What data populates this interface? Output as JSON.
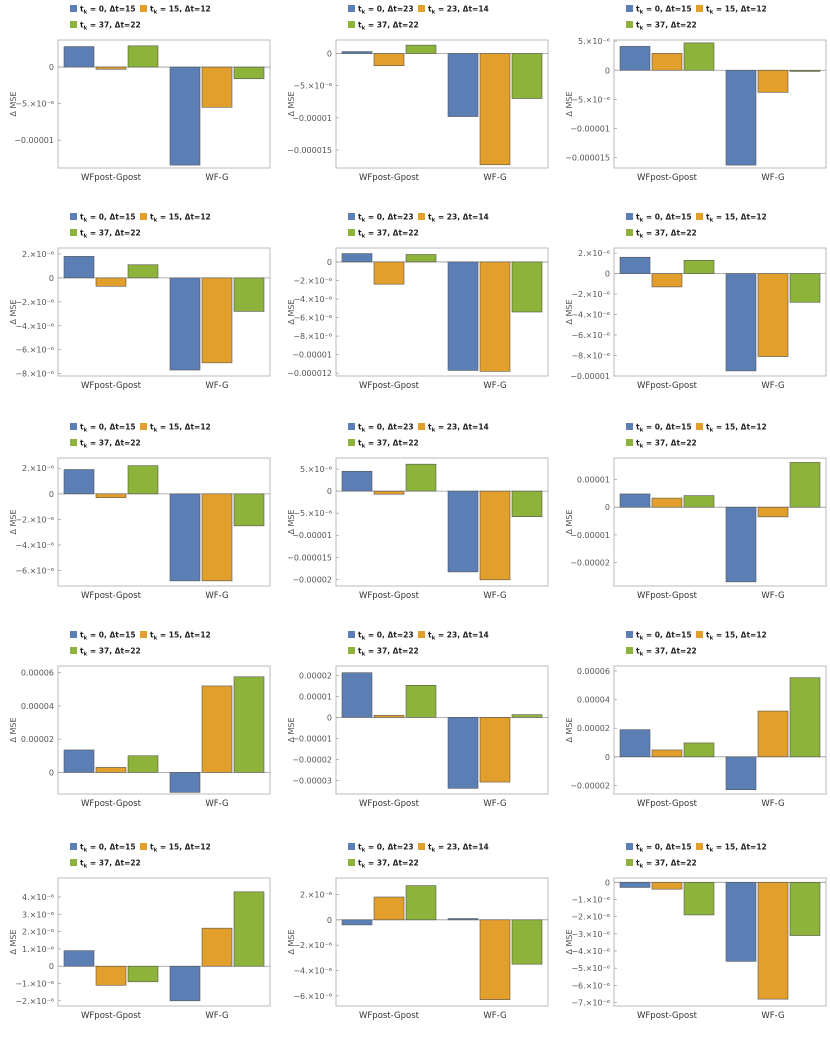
{
  "colors": {
    "blue": "#5b7fb5",
    "orange": "#e39f2b",
    "green": "#8db33a"
  },
  "ylabel": "Δ MSE",
  "categories": [
    "WFpost-Gpost",
    "WF-G"
  ],
  "legend_a": [
    "t_k = 0, Δt=15",
    "t_k = 15, Δt=12",
    "t_k = 37, Δt=22"
  ],
  "legend_b": [
    "t_k = 0, Δt=23",
    "t_k = 23, Δt=14",
    "t_k = 37, Δt=22"
  ],
  "chart_data": [
    {
      "type": "bar",
      "legend": "a",
      "ylim": [
        -1.38e-05,
        3.7e-06
      ],
      "ticks": [
        {
          "v": 0,
          "t": "0"
        },
        {
          "v": -5e-06,
          "t": "−5.×10⁻⁶"
        },
        {
          "v": -1e-05,
          "t": "−0.00001"
        }
      ],
      "series": [
        {
          "values": [
            2.8e-06,
            -1.34e-05
          ]
        },
        {
          "values": [
            -3e-07,
            -5.5e-06
          ]
        },
        {
          "values": [
            2.9e-06,
            -1.6e-06
          ]
        }
      ]
    },
    {
      "type": "bar",
      "legend": "b",
      "ylim": [
        -1.78e-05,
        2.1e-06
      ],
      "ticks": [
        {
          "v": 0,
          "t": "0"
        },
        {
          "v": -5e-06,
          "t": "−5.×10⁻⁶"
        },
        {
          "v": -1e-05,
          "t": "−0.00001"
        },
        {
          "v": -1.5e-05,
          "t": "−0.000015"
        }
      ],
      "series": [
        {
          "values": [
            3e-07,
            -9.8e-06
          ]
        },
        {
          "values": [
            -1.9e-06,
            -1.73e-05
          ]
        },
        {
          "values": [
            1.3e-06,
            -7e-06
          ]
        }
      ]
    },
    {
      "type": "bar",
      "legend": "a",
      "ylim": [
        -1.68e-05,
        5.2e-06
      ],
      "ticks": [
        {
          "v": 5e-06,
          "t": "5.×10⁻⁶"
        },
        {
          "v": 0,
          "t": "0"
        },
        {
          "v": -5e-06,
          "t": "−5.×10⁻⁶"
        },
        {
          "v": -1e-05,
          "t": "−0.00001"
        },
        {
          "v": -1.5e-05,
          "t": "−0.000015"
        }
      ],
      "series": [
        {
          "values": [
            4.1e-06,
            -1.63e-05
          ]
        },
        {
          "values": [
            2.9e-06,
            -3.8e-06
          ]
        },
        {
          "values": [
            4.7e-06,
            -2e-07
          ]
        }
      ]
    },
    {
      "type": "bar",
      "legend": "a",
      "ylim": [
        -8.2e-06,
        2.5e-06
      ],
      "ticks": [
        {
          "v": 2e-06,
          "t": "2.×10⁻⁶"
        },
        {
          "v": 0,
          "t": "0"
        },
        {
          "v": -2e-06,
          "t": "−2.×10⁻⁶"
        },
        {
          "v": -4e-06,
          "t": "−4.×10⁻⁶"
        },
        {
          "v": -6e-06,
          "t": "−6.×10⁻⁶"
        },
        {
          "v": -8e-06,
          "t": "−8.×10⁻⁶"
        }
      ],
      "series": [
        {
          "values": [
            1.8e-06,
            -7.7e-06
          ]
        },
        {
          "values": [
            -7e-07,
            -7.1e-06
          ]
        },
        {
          "values": [
            1.1e-06,
            -2.8e-06
          ]
        }
      ]
    },
    {
      "type": "bar",
      "legend": "b",
      "ylim": [
        -1.23e-05,
        1.5e-06
      ],
      "ticks": [
        {
          "v": 0,
          "t": "0"
        },
        {
          "v": -2e-06,
          "t": "−2.×10⁻⁶"
        },
        {
          "v": -4e-06,
          "t": "−4.×10⁻⁶"
        },
        {
          "v": -6e-06,
          "t": "−6.×10⁻⁶"
        },
        {
          "v": -8e-06,
          "t": "−8.×10⁻⁶"
        },
        {
          "v": -1e-05,
          "t": "−0.00001"
        },
        {
          "v": -1.2e-05,
          "t": "−0.000012"
        }
      ],
      "series": [
        {
          "values": [
            9e-07,
            -1.17e-05
          ]
        },
        {
          "values": [
            -2.4e-06,
            -1.18e-05
          ]
        },
        {
          "values": [
            8e-07,
            -5.4e-06
          ]
        }
      ]
    },
    {
      "type": "bar",
      "legend": "a",
      "ylim": [
        -1e-05,
        2.5e-06
      ],
      "ticks": [
        {
          "v": 2e-06,
          "t": "2.×10⁻⁶"
        },
        {
          "v": 0,
          "t": "0"
        },
        {
          "v": -2e-06,
          "t": "−2.×10⁻⁶"
        },
        {
          "v": -4e-06,
          "t": "−4.×10⁻⁶"
        },
        {
          "v": -6e-06,
          "t": "−6.×10⁻⁶"
        },
        {
          "v": -8e-06,
          "t": "−8.×10⁻⁶"
        },
        {
          "v": -1e-05,
          "t": "−0.00001"
        }
      ],
      "series": [
        {
          "values": [
            1.6e-06,
            -9.5e-06
          ]
        },
        {
          "values": [
            -1.3e-06,
            -8.1e-06
          ]
        },
        {
          "values": [
            1.3e-06,
            -2.8e-06
          ]
        }
      ]
    },
    {
      "type": "bar",
      "legend": "a",
      "ylim": [
        -7.2e-06,
        2.8e-06
      ],
      "ticks": [
        {
          "v": 2e-06,
          "t": "2.×10⁻⁶"
        },
        {
          "v": 0,
          "t": "0"
        },
        {
          "v": -2e-06,
          "t": "−2.×10⁻⁶"
        },
        {
          "v": -4e-06,
          "t": "−4.×10⁻⁶"
        },
        {
          "v": -6e-06,
          "t": "−6.×10⁻⁶"
        }
      ],
      "series": [
        {
          "values": [
            1.9e-06,
            -6.8e-06
          ]
        },
        {
          "values": [
            -3e-07,
            -6.8e-06
          ]
        },
        {
          "values": [
            2.2e-06,
            -2.5e-06
          ]
        }
      ]
    },
    {
      "type": "bar",
      "legend": "b",
      "ylim": [
        -2.15e-05,
        7.5e-06
      ],
      "ticks": [
        {
          "v": 5e-06,
          "t": "5.×10⁻⁶"
        },
        {
          "v": 0,
          "t": "0"
        },
        {
          "v": -5e-06,
          "t": "−5.×10⁻⁶"
        },
        {
          "v": -1e-05,
          "t": "−0.00001"
        },
        {
          "v": -1.5e-05,
          "t": "−0.000015"
        },
        {
          "v": -2e-05,
          "t": "−0.00002"
        }
      ],
      "series": [
        {
          "values": [
            4.5e-06,
            -1.83e-05
          ]
        },
        {
          "values": [
            -7e-07,
            -2.01e-05
          ]
        },
        {
          "values": [
            6.1e-06,
            -5.8e-06
          ]
        }
      ]
    },
    {
      "type": "bar",
      "legend": "a",
      "ylim": [
        -2.85e-05,
        1.78e-05
      ],
      "ticks": [
        {
          "v": 1e-05,
          "t": "0.00001"
        },
        {
          "v": 0,
          "t": "0"
        },
        {
          "v": -1e-05,
          "t": "−0.00001"
        },
        {
          "v": -2e-05,
          "t": "−0.00002"
        }
      ],
      "series": [
        {
          "values": [
            4.8e-06,
            -2.7e-05
          ]
        },
        {
          "values": [
            3.3e-06,
            -3.5e-06
          ]
        },
        {
          "values": [
            4.2e-06,
            1.62e-05
          ]
        }
      ]
    },
    {
      "type": "bar",
      "legend": "a",
      "ylim": [
        -1.3e-05,
        6.4e-05
      ],
      "ticks": [
        {
          "v": 6e-05,
          "t": "0.00006"
        },
        {
          "v": 4e-05,
          "t": "0.00004"
        },
        {
          "v": 2e-05,
          "t": "0.00002"
        },
        {
          "v": 0,
          "t": "0"
        }
      ],
      "series": [
        {
          "values": [
            1.35e-05,
            -1.2e-05
          ]
        },
        {
          "values": [
            3e-06,
            5.2e-05
          ]
        },
        {
          "values": [
            1e-05,
            5.75e-05
          ]
        }
      ]
    },
    {
      "type": "bar",
      "legend": "b",
      "ylim": [
        -3.65e-05,
        2.45e-05
      ],
      "ticks": [
        {
          "v": 2e-05,
          "t": "0.00002"
        },
        {
          "v": 1e-05,
          "t": "0.00001"
        },
        {
          "v": 0,
          "t": "0"
        },
        {
          "v": -1e-05,
          "t": "−0.00001"
        },
        {
          "v": -2e-05,
          "t": "−0.00002"
        },
        {
          "v": -3e-05,
          "t": "−0.00003"
        }
      ],
      "series": [
        {
          "values": [
            2.13e-05,
            -3.38e-05
          ]
        },
        {
          "values": [
            1e-06,
            -3.08e-05
          ]
        },
        {
          "values": [
            1.53e-05,
            1.3e-06
          ]
        }
      ]
    },
    {
      "type": "bar",
      "legend": "a",
      "ylim": [
        -2.6e-05,
        6.35e-05
      ],
      "ticks": [
        {
          "v": 6e-05,
          "t": "0.00006"
        },
        {
          "v": 4e-05,
          "t": "0.00004"
        },
        {
          "v": 2e-05,
          "t": "0.00002"
        },
        {
          "v": 0,
          "t": "0"
        },
        {
          "v": -2e-05,
          "t": "−0.00002"
        }
      ],
      "series": [
        {
          "values": [
            1.9e-05,
            -2.3e-05
          ]
        },
        {
          "values": [
            4.8e-06,
            3.2e-05
          ]
        },
        {
          "values": [
            9.7e-06,
            5.53e-05
          ]
        }
      ]
    },
    {
      "type": "bar",
      "legend": "a",
      "ylim": [
        -2.3e-06,
        5.1e-06
      ],
      "ticks": [
        {
          "v": 4e-06,
          "t": "4.×10⁻⁶"
        },
        {
          "v": 3e-06,
          "t": "3.×10⁻⁶"
        },
        {
          "v": 2e-06,
          "t": "2.×10⁻⁶"
        },
        {
          "v": 1e-06,
          "t": "1.×10⁻⁶"
        },
        {
          "v": 0,
          "t": "0"
        },
        {
          "v": -1e-06,
          "t": "−1.×10⁻⁶"
        },
        {
          "v": -2e-06,
          "t": "−2.×10⁻⁶"
        }
      ],
      "series": [
        {
          "values": [
            9e-07,
            -2e-06
          ]
        },
        {
          "values": [
            -1.1e-06,
            2.2e-06
          ]
        },
        {
          "values": [
            -9e-07,
            4.3e-06
          ]
        }
      ]
    },
    {
      "type": "bar",
      "legend": "b",
      "ylim": [
        -6.8e-06,
        3.3e-06
      ],
      "ticks": [
        {
          "v": 2e-06,
          "t": "2.×10⁻⁶"
        },
        {
          "v": 0,
          "t": "0"
        },
        {
          "v": -2e-06,
          "t": "−2.×10⁻⁶"
        },
        {
          "v": -4e-06,
          "t": "−4.×10⁻⁶"
        },
        {
          "v": -6e-06,
          "t": "−6.×10⁻⁶"
        }
      ],
      "series": [
        {
          "values": [
            -4e-07,
            1e-07
          ]
        },
        {
          "values": [
            1.8e-06,
            -6.3e-06
          ]
        },
        {
          "values": [
            2.7e-06,
            -3.5e-06
          ]
        }
      ]
    },
    {
      "type": "bar",
      "legend": "a",
      "ylim": [
        -7.2e-06,
        2.5e-07
      ],
      "ticks": [
        {
          "v": 0,
          "t": "0"
        },
        {
          "v": -1e-06,
          "t": "−1.×10⁻⁶"
        },
        {
          "v": -2e-06,
          "t": "−2.×10⁻⁶"
        },
        {
          "v": -3e-06,
          "t": "−3.×10⁻⁶"
        },
        {
          "v": -4e-06,
          "t": "−4.×10⁻⁶"
        },
        {
          "v": -5e-06,
          "t": "−5.×10⁻⁶"
        },
        {
          "v": -6e-06,
          "t": "−6.×10⁻⁶"
        },
        {
          "v": -7e-06,
          "t": "−7.×10⁻⁶"
        }
      ],
      "series": [
        {
          "values": [
            -3e-07,
            -4.6e-06
          ]
        },
        {
          "values": [
            -4e-07,
            -6.8e-06
          ]
        },
        {
          "values": [
            -1.9e-06,
            -3.1e-06
          ]
        }
      ]
    }
  ]
}
